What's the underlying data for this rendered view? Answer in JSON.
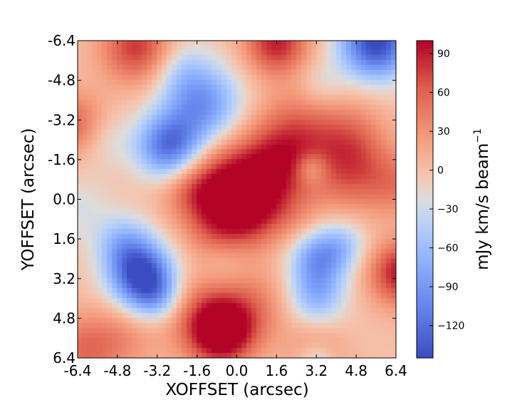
{
  "chart_data": {
    "type": "heatmap",
    "title": "",
    "xlabel": "XOFFSET (arcsec)",
    "ylabel": "YOFFSET (arcsec)",
    "xlim": [
      -6.4,
      6.4
    ],
    "ylim": [
      -6.4,
      6.4
    ],
    "x_ticks": [
      "-6.4",
      "-4.8",
      "-3.2",
      "-1.6",
      "0.0",
      "1.6",
      "3.2",
      "4.8",
      "6.4"
    ],
    "y_ticks": [
      "-6.4",
      "-4.8",
      "-3.2",
      "-1.6",
      "0.0",
      "1.6",
      "3.2",
      "4.8",
      "6.4"
    ],
    "y_axis_inverted": true,
    "colormap": "coolwarm",
    "colorbar": {
      "label": "mJy km/s beam",
      "label_superscript": "−1",
      "vmin": -145,
      "vmax": 100,
      "ticks": [
        90,
        60,
        30,
        0,
        -30,
        -60,
        -90,
        -120
      ],
      "tick_labels": [
        "90",
        "60",
        "30",
        "0",
        "−30",
        "−60",
        "−90",
        "−120"
      ]
    },
    "features": [
      {
        "x": 0.1,
        "y": 0.4,
        "sigma": 1.1,
        "value": 95
      },
      {
        "x": -0.7,
        "y": -0.6,
        "sigma": 1.3,
        "value": 55
      },
      {
        "x": 1.2,
        "y": -0.8,
        "sigma": 1.3,
        "value": 45
      },
      {
        "x": 1.8,
        "y": -1.6,
        "sigma": 1.1,
        "value": 45
      },
      {
        "x": 2.6,
        "y": -2.9,
        "sigma": 1.2,
        "value": 45
      },
      {
        "x": 4.6,
        "y": -1.0,
        "sigma": 1.1,
        "value": 55
      },
      {
        "x": 4.6,
        "y": -2.5,
        "sigma": 1.0,
        "value": 40
      },
      {
        "x": -1.8,
        "y": -0.3,
        "sigma": 0.8,
        "value": 30
      },
      {
        "x": -0.6,
        "y": 5.4,
        "sigma": 0.9,
        "value": 110
      },
      {
        "x": -1.4,
        "y": 4.6,
        "sigma": 1.2,
        "value": 45
      },
      {
        "x": 0.6,
        "y": 4.4,
        "sigma": 1.1,
        "value": 40
      },
      {
        "x": 1.6,
        "y": -6.3,
        "sigma": 0.9,
        "value": 90
      },
      {
        "x": -4.0,
        "y": -6.1,
        "sigma": 1.0,
        "value": 80
      },
      {
        "x": -6.5,
        "y": -3.0,
        "sigma": 0.9,
        "value": 60
      },
      {
        "x": 6.6,
        "y": 3.0,
        "sigma": 0.9,
        "value": 95
      },
      {
        "x": 6.5,
        "y": -0.6,
        "sigma": 0.9,
        "value": 40
      },
      {
        "x": -6.2,
        "y": 6.1,
        "sigma": 1.0,
        "value": 50
      },
      {
        "x": 3.2,
        "y": 6.2,
        "sigma": 0.8,
        "value": 35
      },
      {
        "x": -1.2,
        "y": 1.5,
        "sigma": 0.7,
        "value": 15
      },
      {
        "x": -4.6,
        "y": 5.6,
        "sigma": 1.0,
        "value": 30
      },
      {
        "x": 2.3,
        "y": 0.8,
        "sigma": 0.7,
        "value": 15
      },
      {
        "x": -3.8,
        "y": 3.1,
        "sigma": 0.9,
        "value": -145
      },
      {
        "x": -4.5,
        "y": 1.8,
        "sigma": 0.8,
        "value": -60
      },
      {
        "x": -3.2,
        "y": 4.0,
        "sigma": 0.7,
        "value": -50
      },
      {
        "x": -2.7,
        "y": -2.1,
        "sigma": 0.9,
        "value": -120
      },
      {
        "x": -1.4,
        "y": -3.8,
        "sigma": 1.1,
        "value": -95
      },
      {
        "x": 5.6,
        "y": -6.3,
        "sigma": 1.0,
        "value": -150
      },
      {
        "x": 3.3,
        "y": 2.4,
        "sigma": 0.8,
        "value": -85
      },
      {
        "x": 3.2,
        "y": 3.9,
        "sigma": 0.8,
        "value": -65
      },
      {
        "x": 4.3,
        "y": 1.8,
        "sigma": 0.7,
        "value": -40
      },
      {
        "x": -2.2,
        "y": -5.3,
        "sigma": 0.8,
        "value": -30
      },
      {
        "x": -5.3,
        "y": -2.4,
        "sigma": 0.8,
        "value": -25
      },
      {
        "x": -6.4,
        "y": 0.4,
        "sigma": 0.9,
        "value": -25
      },
      {
        "x": 3.4,
        "y": -4.6,
        "sigma": 0.7,
        "value": -25
      },
      {
        "x": 3.2,
        "y": 6.5,
        "sigma": 0.5,
        "value": -50
      },
      {
        "x": -0.5,
        "y": 2.8,
        "sigma": 0.7,
        "value": -15
      },
      {
        "x": 3.0,
        "y": -1.2,
        "sigma": 0.45,
        "value": -45
      }
    ]
  }
}
